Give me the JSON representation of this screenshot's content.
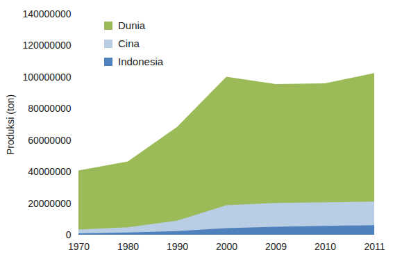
{
  "chart_data": {
    "type": "area",
    "y_label": "Produksi (ton)",
    "categories": [
      "1970",
      "1980",
      "1990",
      "2000",
      "2009",
      "2010",
      "2011"
    ],
    "series": [
      {
        "name": "Dunia",
        "color": "#9bbb59",
        "values": [
          40700000,
          46400000,
          68400000,
          100200000,
          95500000,
          96000000,
          102500000
        ]
      },
      {
        "name": "Cina",
        "color": "#b9cde5",
        "values": [
          3300000,
          4700000,
          8900000,
          18700000,
          20100000,
          20600000,
          21000000
        ]
      },
      {
        "name": "Indonesia",
        "color": "#4f81bd",
        "values": [
          900000,
          1400000,
          2300000,
          4200000,
          5100000,
          5600000,
          6100000
        ]
      }
    ],
    "ylim": [
      0,
      140000000
    ],
    "yticks": [
      0,
      20000000,
      40000000,
      60000000,
      80000000,
      100000000,
      120000000,
      140000000
    ],
    "stacked": false,
    "grid": false,
    "legend": "top-left"
  }
}
